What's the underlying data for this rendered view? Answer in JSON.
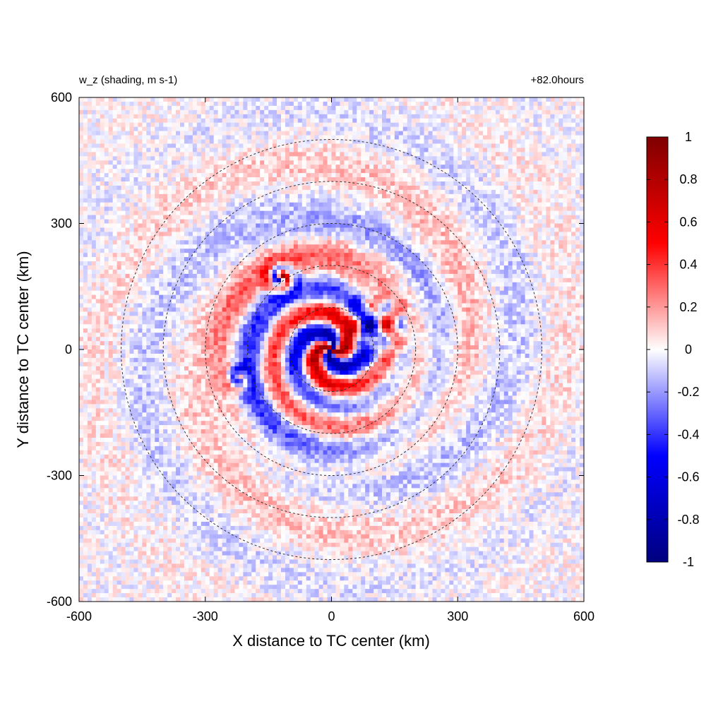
{
  "chart_data": {
    "type": "heatmap",
    "title_left": "w_z (shading, m s-1)",
    "title_right": "+82.0hours",
    "xlabel": "X distance to TC center (km)",
    "ylabel": "Y distance to TC center (km)",
    "xlim": [
      -600,
      600
    ],
    "ylim": [
      -600,
      600
    ],
    "x_ticks": [
      "-600",
      "-300",
      "0",
      "300",
      "600"
    ],
    "y_ticks": [
      "600",
      "300",
      "0",
      "-300",
      "-600"
    ],
    "x_tick_values": [
      -600,
      -300,
      0,
      300,
      600
    ],
    "y_tick_values": [
      600,
      300,
      0,
      -300,
      -600
    ],
    "range_rings_km": [
      100,
      200,
      300,
      400,
      500
    ],
    "range_ring_style": "dashed",
    "colorbar": {
      "min": -1,
      "max": 1,
      "ticks": [
        "1",
        "0.8",
        "0.6",
        "0.4",
        "0.2",
        "0",
        "-0.2",
        "-0.4",
        "-0.6",
        "-0.8",
        "-1"
      ],
      "tick_values": [
        1,
        0.8,
        0.6,
        0.4,
        0.2,
        0,
        -0.2,
        -0.4,
        -0.6,
        -0.8,
        -1
      ],
      "colors": {
        "max": "#7f0000",
        "high": "#ff0000",
        "mid": "#ffffff",
        "low": "#0000ff",
        "min": "#00007f"
      }
    },
    "field_features": [
      {
        "kind": "spiral_core",
        "x": 0,
        "y": 0,
        "amplitude": 0.9
      },
      {
        "kind": "vortex",
        "x": -120,
        "y": 170,
        "amplitude": 0.8
      },
      {
        "kind": "vortex",
        "x": -220,
        "y": -70,
        "amplitude": 0.4
      },
      {
        "kind": "cluster",
        "x": 110,
        "y": 60,
        "amplitude": 0.6
      }
    ]
  }
}
